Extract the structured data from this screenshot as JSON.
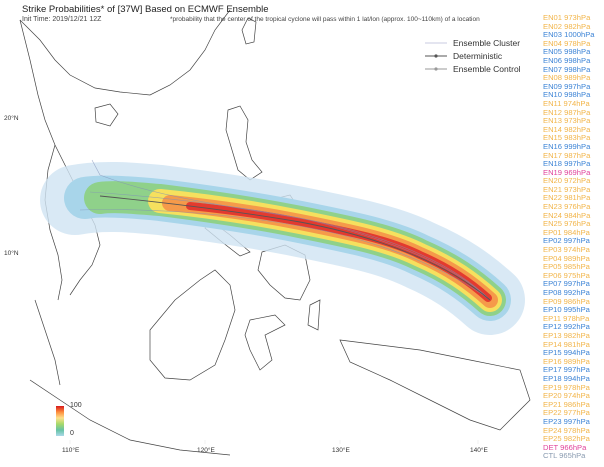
{
  "header": {
    "title": "Strike Probabilities* of [37W] Based on ECMWF Ensemble",
    "init_time": "Init Time: 2019/12/21 12Z",
    "note": "*probability that the center of the tropical cyclone will pass within 1 lat/lon (approx. 100~110km) of a location"
  },
  "legend": {
    "cluster": "Ensemble Cluster",
    "deterministic": "Deterministic",
    "control": "Ensemble Control"
  },
  "colors": {
    "weak": "#f2b54a",
    "moderate": "#3d84d6",
    "strong": "#e0449c",
    "control": "#8a9bb0"
  },
  "axes": {
    "lon_labels": [
      "110°E",
      "120°E",
      "130°E",
      "140°E"
    ],
    "lat_labels": [
      "20°N",
      "10°N"
    ]
  },
  "colorbar": {
    "max": "100",
    "min": "0"
  },
  "members": [
    {
      "label": "EN01 973hPa",
      "cls": "weak"
    },
    {
      "label": "EN02 982hPa",
      "cls": "weak"
    },
    {
      "label": "EN03 1000hPa",
      "cls": "moderate"
    },
    {
      "label": "EN04 978hPa",
      "cls": "weak"
    },
    {
      "label": "EN05 998hPa",
      "cls": "moderate"
    },
    {
      "label": "EN06 998hPa",
      "cls": "moderate"
    },
    {
      "label": "EN07 998hPa",
      "cls": "moderate"
    },
    {
      "label": "EN08 989hPa",
      "cls": "weak"
    },
    {
      "label": "EN09 997hPa",
      "cls": "moderate"
    },
    {
      "label": "EN10 998hPa",
      "cls": "moderate"
    },
    {
      "label": "EN11 974hPa",
      "cls": "weak"
    },
    {
      "label": "EN12 987hPa",
      "cls": "weak"
    },
    {
      "label": "EN13 973hPa",
      "cls": "weak"
    },
    {
      "label": "EN14 982hPa",
      "cls": "weak"
    },
    {
      "label": "EN15 983hPa",
      "cls": "weak"
    },
    {
      "label": "EN16 999hPa",
      "cls": "moderate"
    },
    {
      "label": "EN17 987hPa",
      "cls": "weak"
    },
    {
      "label": "EN18 997hPa",
      "cls": "moderate"
    },
    {
      "label": "EN19 969hPa",
      "cls": "strong"
    },
    {
      "label": "EN20 972hPa",
      "cls": "weak"
    },
    {
      "label": "EN21 973hPa",
      "cls": "weak"
    },
    {
      "label": "EN22 981hPa",
      "cls": "weak"
    },
    {
      "label": "EN23 976hPa",
      "cls": "weak"
    },
    {
      "label": "EN24 984hPa",
      "cls": "weak"
    },
    {
      "label": "EN25 976hPa",
      "cls": "weak"
    },
    {
      "label": "EP01 984hPa",
      "cls": "weak"
    },
    {
      "label": "EP02 997hPa",
      "cls": "moderate"
    },
    {
      "label": "EP03 974hPa",
      "cls": "weak"
    },
    {
      "label": "EP04 989hPa",
      "cls": "weak"
    },
    {
      "label": "EP05 985hPa",
      "cls": "weak"
    },
    {
      "label": "EP06 975hPa",
      "cls": "weak"
    },
    {
      "label": "EP07 997hPa",
      "cls": "moderate"
    },
    {
      "label": "EP08 992hPa",
      "cls": "moderate"
    },
    {
      "label": "EP09 986hPa",
      "cls": "weak"
    },
    {
      "label": "EP10 995hPa",
      "cls": "moderate"
    },
    {
      "label": "EP11 978hPa",
      "cls": "weak"
    },
    {
      "label": "EP12 992hPa",
      "cls": "moderate"
    },
    {
      "label": "EP13 982hPa",
      "cls": "weak"
    },
    {
      "label": "EP14 981hPa",
      "cls": "weak"
    },
    {
      "label": "EP15 994hPa",
      "cls": "moderate"
    },
    {
      "label": "EP16 989hPa",
      "cls": "weak"
    },
    {
      "label": "EP17 997hPa",
      "cls": "moderate"
    },
    {
      "label": "EP18 994hPa",
      "cls": "moderate"
    },
    {
      "label": "EP19 978hPa",
      "cls": "weak"
    },
    {
      "label": "EP20 974hPa",
      "cls": "weak"
    },
    {
      "label": "EP21 986hPa",
      "cls": "weak"
    },
    {
      "label": "EP22 977hPa",
      "cls": "weak"
    },
    {
      "label": "EP23 997hPa",
      "cls": "moderate"
    },
    {
      "label": "EP24 978hPa",
      "cls": "weak"
    },
    {
      "label": "EP25 982hPa",
      "cls": "weak"
    },
    {
      "label": "DET 966hPa",
      "cls": "strong"
    },
    {
      "label": "CTL 965hPa",
      "cls": "control"
    }
  ]
}
